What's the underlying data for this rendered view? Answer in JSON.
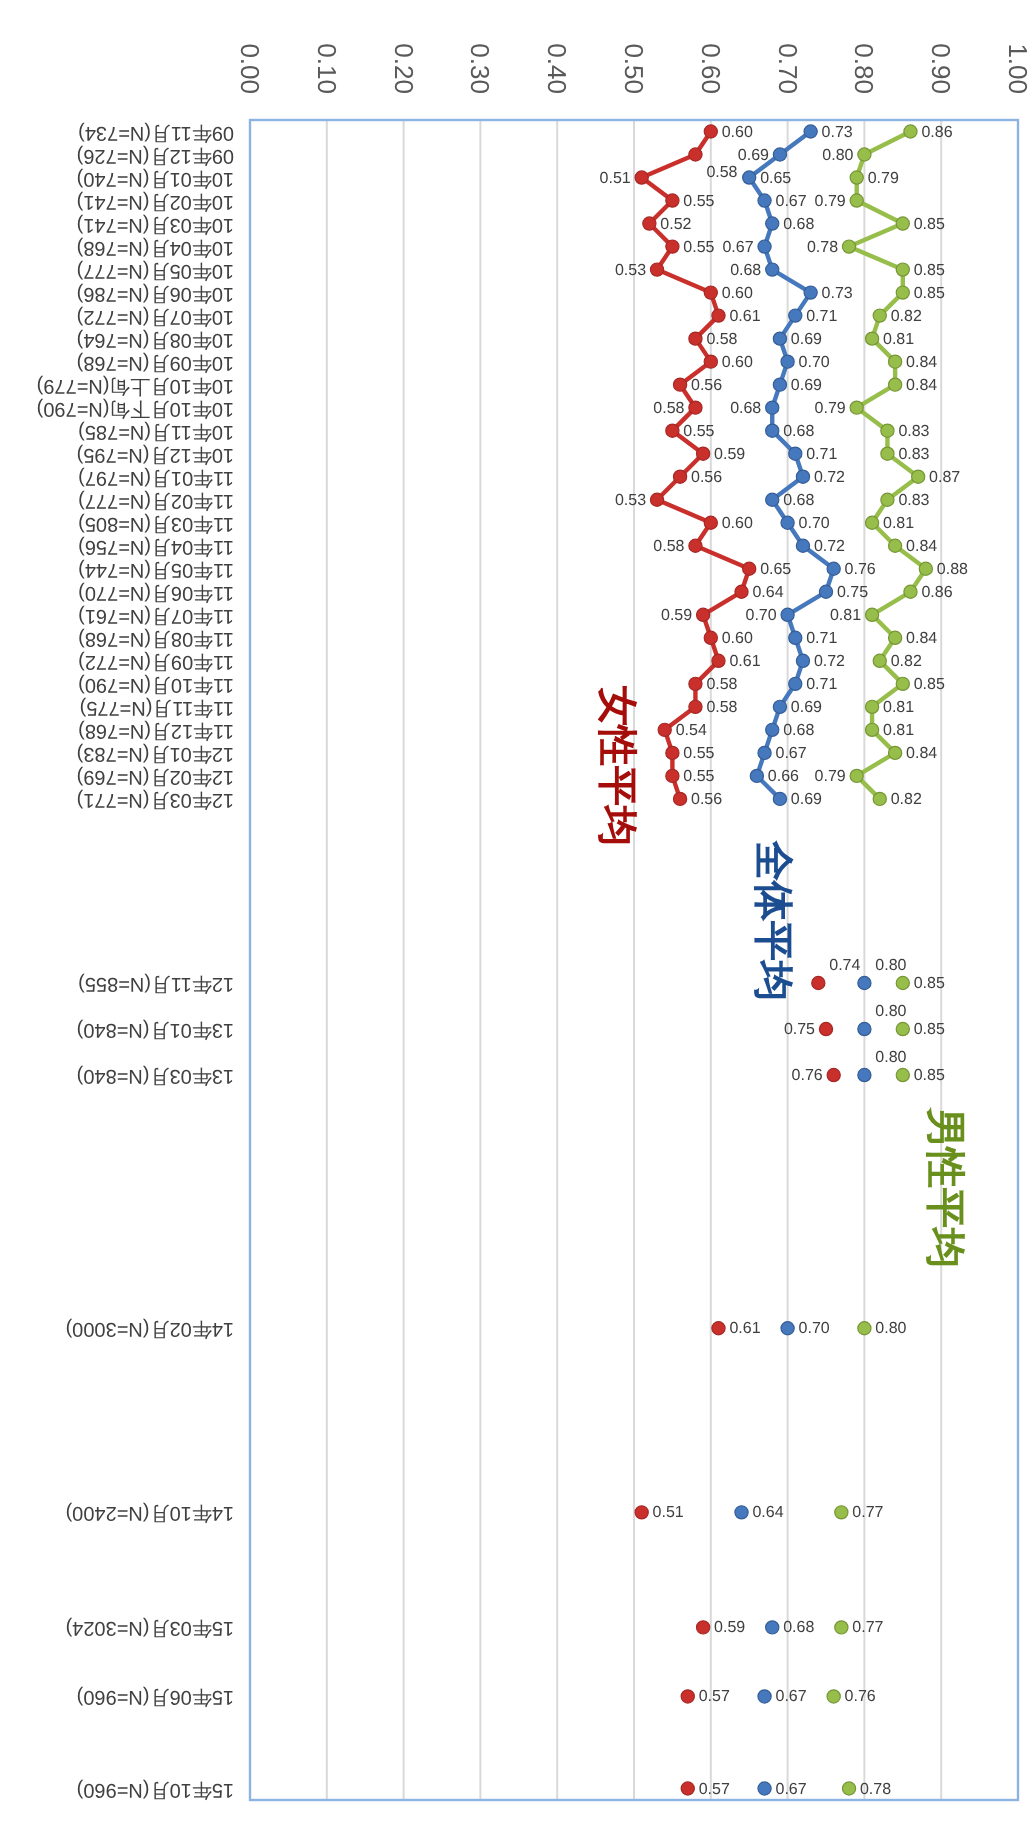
{
  "chart_data": {
    "type": "line",
    "orientation": "horizontal",
    "categories": [
      "09年11月(N=734)",
      "09年12月(N=726)",
      "10年01月(N=740)",
      "10年02月(N=741)",
      "10年03月(N=741)",
      "10年04月(N=768)",
      "10年05月(N=777)",
      "10年06月(N=786)",
      "10年07月(N=772)",
      "10年08月(N=764)",
      "10年09月(N=768)",
      "10年10月上旬(N=779)",
      "10年10月下旬(N=790)",
      "10年11月(N=785)",
      "10年12月(N=795)",
      "11年01月(N=797)",
      "11年02月(N=777)",
      "11年03月(N=805)",
      "11年04月(N=756)",
      "11年05月(N=744)",
      "11年06月(N=770)",
      "11年07月(N=761)",
      "11年08月(N=768)",
      "11年09月(N=772)",
      "11年10月(N=790)",
      "11年11月(N=775)",
      "11年12月(N=768)",
      "12年01月(N=783)",
      "12年02月(N=769)",
      "12年03月(N=771)",
      null,
      null,
      null,
      null,
      null,
      null,
      null,
      "12年11月(N=855)",
      null,
      "13年01月(N=840)",
      null,
      "13年03月(N=840)",
      null,
      null,
      null,
      null,
      null,
      null,
      null,
      null,
      null,
      null,
      "14年02月(N=3000)",
      null,
      null,
      null,
      null,
      null,
      null,
      null,
      "14年10月(N=2400)",
      null,
      null,
      null,
      null,
      "15年03月(N=3024)",
      null,
      null,
      "15年06月(N=960)",
      null,
      null,
      null,
      "15年10月(N=960)"
    ],
    "series": [
      {
        "name": "男性平均",
        "color": "#97be4a",
        "values": [
          0.86,
          0.8,
          0.79,
          0.79,
          0.85,
          0.78,
          0.85,
          0.85,
          0.82,
          0.81,
          0.84,
          0.84,
          0.79,
          0.83,
          0.83,
          0.87,
          0.83,
          0.81,
          0.84,
          0.88,
          0.86,
          0.81,
          0.84,
          0.82,
          0.85,
          0.81,
          0.81,
          0.84,
          0.79,
          0.82,
          null,
          null,
          null,
          null,
          null,
          null,
          null,
          0.85,
          null,
          0.85,
          null,
          0.85,
          null,
          null,
          null,
          null,
          null,
          null,
          null,
          null,
          null,
          null,
          0.8,
          null,
          null,
          null,
          null,
          null,
          null,
          null,
          0.77,
          null,
          null,
          null,
          null,
          0.77,
          null,
          null,
          0.76,
          null,
          null,
          null,
          0.78
        ],
        "value_labels": [
          "0.86",
          "0.80",
          "0.79",
          "0.79",
          "0.85",
          "0.78",
          "0.85",
          "0.85",
          "0.82",
          "0.81",
          "0.84",
          "0.84",
          "0.79",
          "0.83",
          "0.83",
          "0.87",
          "0.83",
          "0.81",
          "0.84",
          "0.88",
          "0.86",
          "0.81",
          "0.84",
          "0.82",
          "0.85",
          "0.81",
          "0.81",
          "0.84",
          "0.79",
          "0.82",
          null,
          null,
          null,
          null,
          null,
          null,
          null,
          "0.85",
          null,
          "0.85",
          null,
          "0.85",
          null,
          null,
          null,
          null,
          null,
          null,
          null,
          null,
          null,
          null,
          "0.80",
          null,
          null,
          null,
          null,
          null,
          null,
          null,
          "0.77",
          null,
          null,
          null,
          null,
          "0.77",
          null,
          null,
          "0.76",
          null,
          null,
          null,
          "0.78"
        ]
      },
      {
        "name": "全体平均",
        "color": "#4678be",
        "values": [
          0.73,
          0.69,
          0.65,
          0.67,
          0.68,
          0.67,
          0.68,
          0.73,
          0.71,
          0.69,
          0.7,
          0.69,
          0.68,
          0.68,
          0.71,
          0.72,
          0.68,
          0.7,
          0.72,
          0.76,
          0.75,
          0.7,
          0.71,
          0.72,
          0.71,
          0.69,
          0.68,
          0.67,
          0.66,
          0.69,
          null,
          null,
          null,
          null,
          null,
          null,
          null,
          0.8,
          null,
          0.8,
          null,
          0.8,
          null,
          null,
          null,
          null,
          null,
          null,
          null,
          null,
          null,
          null,
          0.7,
          null,
          null,
          null,
          null,
          null,
          null,
          null,
          0.64,
          null,
          null,
          null,
          null,
          0.68,
          null,
          null,
          0.67,
          null,
          null,
          null,
          0.67
        ],
        "value_labels": [
          "0.73",
          "0.69",
          "0.65",
          "0.67",
          "0.68",
          "0.67",
          "0.68",
          "0.73",
          "0.71",
          "0.69",
          "0.70",
          "0.69",
          "0.68",
          "0.68",
          "0.71",
          "0.72",
          "0.68",
          "0.70",
          "0.72",
          "0.76",
          "0.75",
          "0.70",
          "0.71",
          "0.72",
          "0.71",
          "0.69",
          "0.68",
          "0.67",
          "0.66",
          "0.69",
          null,
          null,
          null,
          null,
          null,
          null,
          null,
          "0.80",
          null,
          "0.80",
          null,
          "0.80",
          null,
          null,
          null,
          null,
          null,
          null,
          null,
          null,
          null,
          null,
          "0.70",
          null,
          null,
          null,
          null,
          null,
          null,
          null,
          "0.64",
          null,
          null,
          null,
          null,
          "0.68",
          null,
          null,
          "0.67",
          null,
          null,
          null,
          "0.67"
        ]
      },
      {
        "name": "女性平均",
        "color": "#c9302c",
        "values": [
          0.6,
          0.58,
          0.51,
          0.55,
          0.52,
          0.55,
          0.53,
          0.6,
          0.61,
          0.58,
          0.6,
          0.56,
          0.58,
          0.55,
          0.59,
          0.56,
          0.53,
          0.6,
          0.58,
          0.65,
          0.64,
          0.59,
          0.6,
          0.61,
          0.58,
          0.58,
          0.54,
          0.55,
          0.55,
          0.56,
          null,
          null,
          null,
          null,
          null,
          null,
          null,
          0.74,
          null,
          0.75,
          null,
          0.76,
          null,
          null,
          null,
          null,
          null,
          null,
          null,
          null,
          null,
          null,
          0.61,
          null,
          null,
          null,
          null,
          null,
          null,
          null,
          0.51,
          null,
          null,
          null,
          null,
          0.59,
          null,
          null,
          0.57,
          null,
          null,
          null,
          0.57
        ],
        "value_labels": [
          "0.60",
          "0.58",
          "0.51",
          "0.55",
          "0.52",
          "0.55",
          "0.53",
          "0.60",
          "0.61",
          "0.58",
          "0.60",
          "0.56",
          "0.58",
          "0.55",
          "0.59",
          "0.56",
          "0.53",
          "0.60",
          "0.58",
          "0.65",
          "0.64",
          "0.59",
          "0.60",
          "0.61",
          "0.58",
          "0.58",
          "0.54",
          "0.55",
          "0.55",
          "0.56",
          null,
          null,
          null,
          null,
          null,
          null,
          null,
          "0.74",
          null,
          "0.75",
          null,
          "0.76",
          null,
          null,
          null,
          null,
          null,
          null,
          null,
          null,
          null,
          null,
          "0.61",
          null,
          null,
          null,
          null,
          null,
          null,
          null,
          "0.51",
          null,
          null,
          null,
          null,
          "0.59",
          null,
          null,
          "0.57",
          null,
          null,
          null,
          "0.57"
        ]
      }
    ],
    "xlim": [
      0,
      1
    ],
    "xticks": [
      {
        "value": 0,
        "label": "0.00"
      },
      {
        "value": 0.1,
        "label": "0.10"
      },
      {
        "value": 0.2,
        "label": "0.20"
      },
      {
        "value": 0.3,
        "label": "0.30"
      },
      {
        "value": 0.4,
        "label": "0.40"
      },
      {
        "value": 0.5,
        "label": "0.50"
      },
      {
        "value": 0.6,
        "label": "0.60"
      },
      {
        "value": 0.7,
        "label": "0.70"
      },
      {
        "value": 0.8,
        "label": "0.80"
      },
      {
        "value": 0.9,
        "label": "0.90"
      },
      {
        "value": 1,
        "label": "1.00"
      }
    ],
    "grid": "x",
    "marker": "circle"
  }
}
